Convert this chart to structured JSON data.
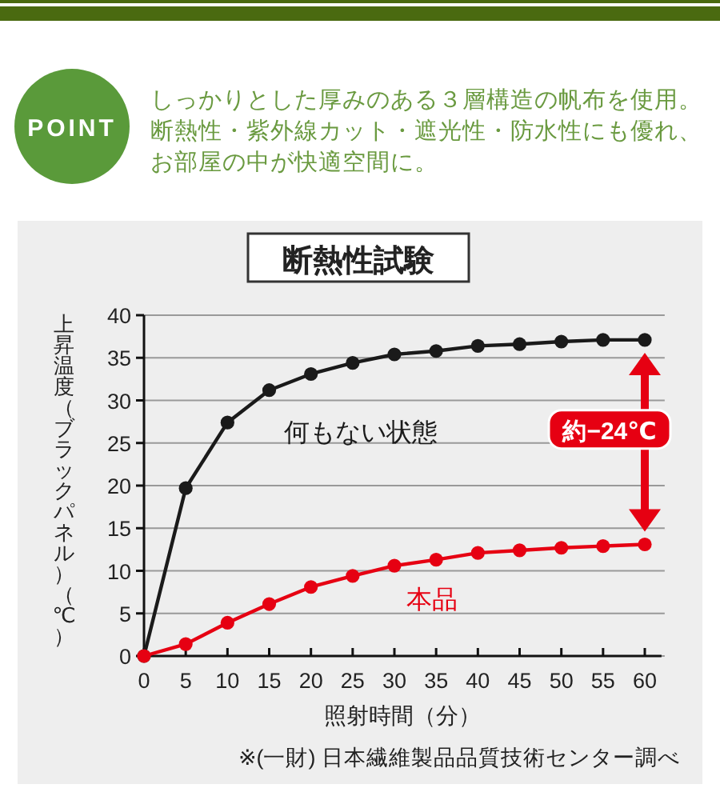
{
  "chart_data": {
    "type": "line",
    "title": "断熱性試験",
    "xlabel": "照射時間（分）",
    "ylabel": "上昇温度（ブラックパネル）（℃）",
    "x": [
      0,
      5,
      10,
      15,
      20,
      25,
      30,
      35,
      40,
      45,
      50,
      55,
      60
    ],
    "series": [
      {
        "name": "何もない状態",
        "color": "#1a1a1a",
        "values": [
          0,
          19.7,
          27.4,
          31.2,
          33.1,
          34.4,
          35.4,
          35.8,
          36.4,
          36.6,
          36.9,
          37.1,
          37.1
        ]
      },
      {
        "name": "本品",
        "color": "#e60012",
        "values": [
          0,
          1.4,
          3.9,
          6.1,
          8.1,
          9.4,
          10.6,
          11.3,
          12.1,
          12.4,
          12.7,
          12.9,
          13.1
        ]
      }
    ],
    "xlim": [
      0,
      62
    ],
    "ylim": [
      0,
      40
    ],
    "xticks": [
      0,
      5,
      10,
      15,
      20,
      25,
      30,
      35,
      40,
      45,
      50,
      55,
      60
    ],
    "yticks": [
      0,
      5,
      10,
      15,
      20,
      25,
      30,
      35,
      40
    ],
    "grid": "y",
    "marker": "circle",
    "line_style": "solid",
    "annotations": [
      "POINT",
      "しっかりとした厚みのある３層構造の帆布を使用。",
      "断熱性・紫外線カット・遮光性・防水性にも優れ、",
      "お部屋の中が快適空間に。",
      "約−24℃",
      "※(一財) 日本繊維製品品質技術センター調べ"
    ]
  }
}
